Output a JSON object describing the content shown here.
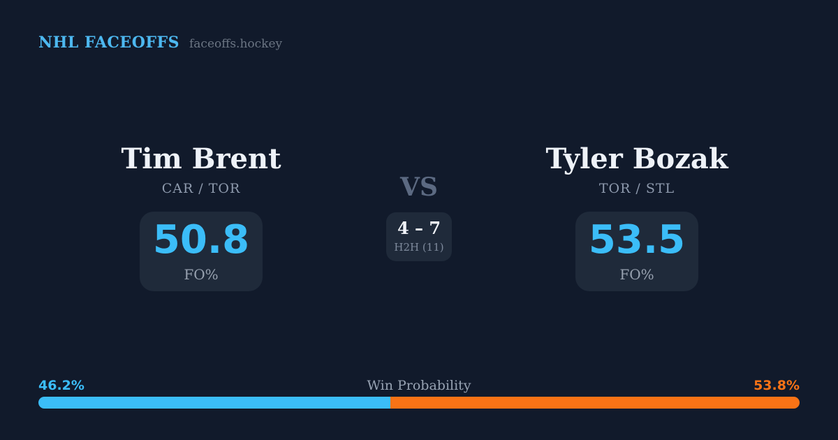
{
  "header": {
    "brand": "NHL FACEOFFS",
    "site": "faceoffs.hockey"
  },
  "players": [
    {
      "name": "Tim Brent",
      "teams": "CAR / TOR",
      "fo_value": "50.8",
      "fo_label": "FO%"
    },
    {
      "name": "Tyler Bozak",
      "teams": "TOR / STL",
      "fo_value": "53.5",
      "fo_label": "FO%"
    }
  ],
  "versus": {
    "label": "VS",
    "h2h_record": "4 – 7",
    "h2h_label": "H2H (11)"
  },
  "win_probability": {
    "label": "Win Probability",
    "left": {
      "text": "46.2%",
      "value": 46.2,
      "color": "#3bbdf8"
    },
    "right": {
      "text": "53.8%",
      "value": 53.8,
      "color": "#f97316"
    }
  },
  "colors": {
    "background": "#111a2b",
    "panel": "#1f2a3a",
    "accent_blue": "#3bbdf8",
    "accent_orange": "#f97316",
    "brand_blue": "#4db8f0"
  }
}
